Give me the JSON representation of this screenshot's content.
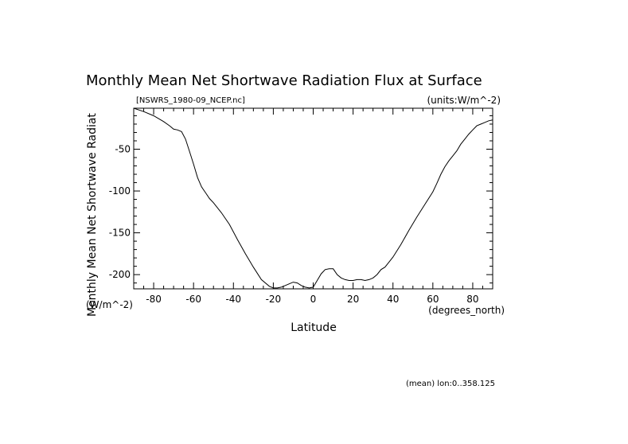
{
  "chart_data": {
    "type": "line",
    "title": "Monthly Mean Net Shortwave Radiation Flux at Surface",
    "file_label": "[NSWRS_1980-09_NCEP.nc]",
    "units_label": "(units:W/m^-2)",
    "xlabel": "Latitude",
    "x_units": "(degrees_north)",
    "ylabel": "Monthly Mean Net Shortwave Radiat",
    "y_units": "(W/m^-2)",
    "footer": "(mean) lon:0..358.125",
    "xlim": [
      -90,
      90
    ],
    "ylim": [
      -217,
      -1
    ],
    "x_ticks": [
      -80,
      -60,
      -40,
      -20,
      0,
      20,
      40,
      60,
      80
    ],
    "y_ticks": [
      -50,
      -100,
      -150,
      -200
    ],
    "grid": false,
    "legend": "none",
    "series": [
      {
        "x": [
          -90,
          -85,
          -80,
          -75,
          -72,
          -70,
          -68,
          -66,
          -64,
          -62,
          -60,
          -58,
          -56,
          -54,
          -52,
          -50,
          -46,
          -42,
          -38,
          -34,
          -30,
          -26,
          -22,
          -20,
          -18,
          -16,
          -14,
          -12,
          -10,
          -8,
          -6,
          -4,
          -2,
          0,
          2,
          4,
          6,
          8,
          10,
          12,
          14,
          16,
          18,
          20,
          22,
          24,
          26,
          28,
          30,
          32,
          34,
          36,
          38,
          40,
          44,
          48,
          52,
          56,
          60,
          62,
          64,
          66,
          68,
          70,
          72,
          74,
          76,
          78,
          80,
          82,
          84,
          86,
          88,
          90
        ],
        "y": [
          -1,
          -5,
          -10,
          -17,
          -22,
          -26,
          -27,
          -29,
          -38,
          -53,
          -68,
          -84,
          -95,
          -102,
          -109,
          -114,
          -126,
          -140,
          -158,
          -175,
          -191,
          -206,
          -214,
          -216,
          -216,
          -215,
          -213,
          -211,
          -209,
          -210,
          -213,
          -215,
          -216,
          -215,
          -207,
          -199,
          -194,
          -193,
          -193,
          -200,
          -204,
          -206,
          -207,
          -207,
          -206,
          -206,
          -207,
          -206,
          -204,
          -200,
          -194,
          -191,
          -185,
          -179,
          -164,
          -147,
          -131,
          -116,
          -101,
          -91,
          -80,
          -71,
          -64,
          -58,
          -52,
          -44,
          -38,
          -32,
          -27,
          -22,
          -20,
          -18,
          -16,
          -15
        ]
      }
    ]
  }
}
